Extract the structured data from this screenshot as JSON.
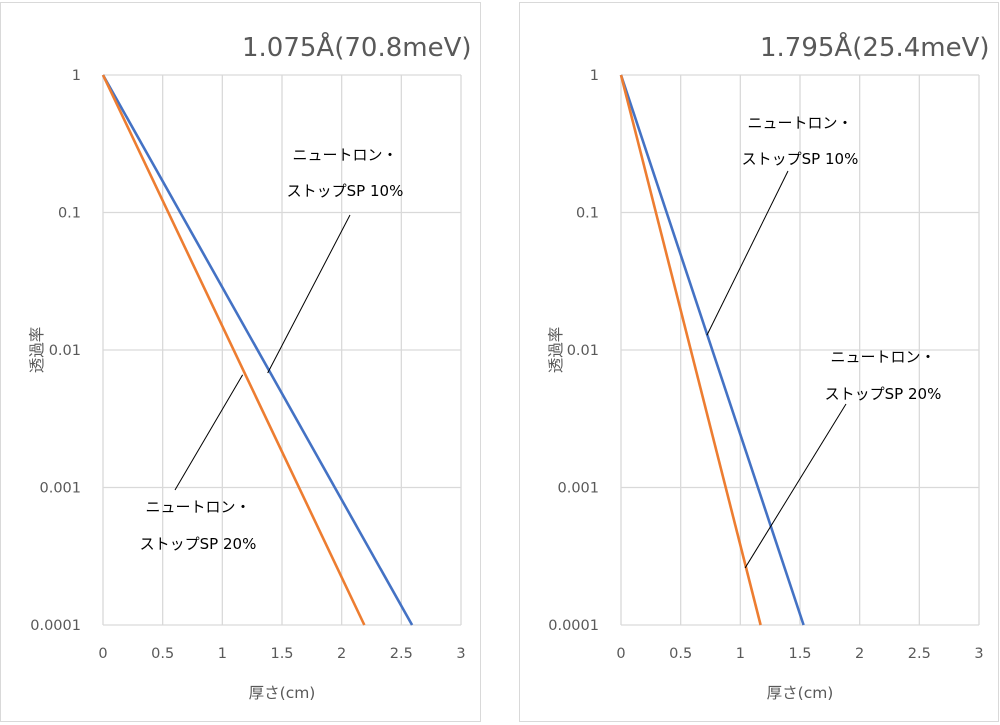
{
  "chart_data": [
    {
      "type": "line",
      "title": "1.075Å(70.8meV)",
      "xlabel": "厚さ(cm)",
      "ylabel": "透過率",
      "xlim": [
        0,
        3
      ],
      "ylim": [
        0.0001,
        1
      ],
      "yscale": "log",
      "grid": true,
      "x_ticks": [
        "0",
        "0.5",
        "1",
        "1.5",
        "2",
        "2.5",
        "3"
      ],
      "y_ticks": [
        "1",
        "0.1",
        "0.01",
        "0.001",
        "0.0001"
      ],
      "series": [
        {
          "name": "ニュートロン・ストップSP 10%",
          "color": "#4472c4",
          "x": [
            0,
            2.59
          ],
          "y": [
            1,
            0.0001
          ]
        },
        {
          "name": "ニュートロン・ストップSP 20%",
          "color": "#ed7d31",
          "x": [
            0,
            2.19
          ],
          "y": [
            1,
            0.0001
          ]
        }
      ],
      "annotations": [
        {
          "line1": "ニュートロン・",
          "line2": "ストップSP 10%",
          "series": 0,
          "point_x": 1.38,
          "point_y": 0.0068
        },
        {
          "line1": "ニュートロン・",
          "line2": "ストップSP 20%",
          "series": 1,
          "point_x": 1.17,
          "point_y": 0.0066
        }
      ]
    },
    {
      "type": "line",
      "title": "1.795Å(25.4meV)",
      "xlabel": "厚さ(cm)",
      "ylabel": "透過率",
      "xlim": [
        0,
        3
      ],
      "ylim": [
        0.0001,
        1
      ],
      "yscale": "log",
      "grid": true,
      "x_ticks": [
        "0",
        "0.5",
        "1",
        "1.5",
        "2",
        "2.5",
        "3"
      ],
      "y_ticks": [
        "1",
        "0.1",
        "0.01",
        "0.001",
        "0.0001"
      ],
      "series": [
        {
          "name": "ニュートロン・ストップSP 10%",
          "color": "#4472c4",
          "x": [
            0,
            1.53
          ],
          "y": [
            1,
            0.0001
          ]
        },
        {
          "name": "ニュートロン・ストップSP 20%",
          "color": "#ed7d31",
          "x": [
            0,
            1.17
          ],
          "y": [
            1,
            0.0001
          ]
        }
      ],
      "annotations": [
        {
          "line1": "ニュートロン・",
          "line2": "ストップSP 10%",
          "series": 0,
          "point_x": 0.72,
          "point_y": 0.0128
        },
        {
          "line1": "ニュートロン・",
          "line2": "ストップSP 20%",
          "series": 1,
          "point_x": 1.04,
          "point_y": 0.00026
        }
      ]
    }
  ]
}
